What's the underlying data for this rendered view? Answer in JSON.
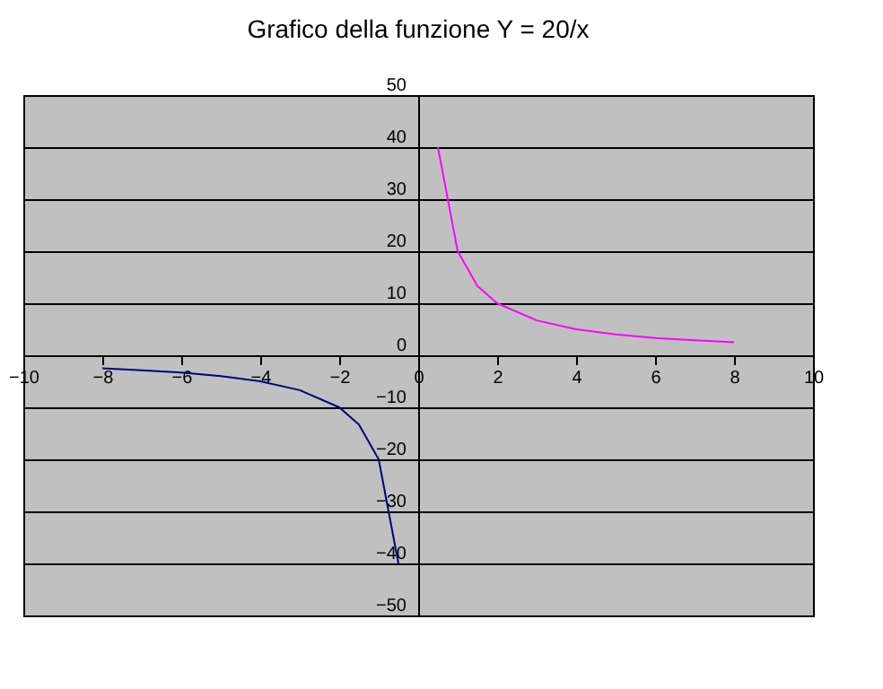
{
  "chart_data": {
    "type": "line",
    "title": "Grafico della funzione Y = 20/x",
    "series": [
      {
        "color": "#000080",
        "x": [
          -8,
          -7,
          -6,
          -5,
          -4,
          -3,
          -2,
          -1.5,
          -1,
          -0.5
        ],
        "values": [
          -2.5,
          -2.9,
          -3.3,
          -4,
          -5,
          -6.7,
          -10,
          -13.3,
          -20,
          -40
        ]
      },
      {
        "color": "#ff00ff",
        "x": [
          0.5,
          1,
          1.5,
          2,
          3,
          4,
          5,
          6,
          7,
          8
        ],
        "values": [
          40,
          20,
          13.3,
          10,
          6.7,
          5,
          4,
          3.3,
          2.9,
          2.5
        ]
      }
    ],
    "xlim": [
      -10,
      10
    ],
    "xticks": [
      -10,
      -8,
      -6,
      -4,
      -2,
      0,
      2,
      4,
      6,
      8,
      10
    ],
    "ylim": [
      -50,
      50
    ],
    "yticks": [
      -50,
      -40,
      -30,
      -20,
      -10,
      0,
      10,
      20,
      30,
      40,
      50
    ],
    "grid": "y",
    "marker": "none",
    "line_style": "solid",
    "legend": false
  }
}
